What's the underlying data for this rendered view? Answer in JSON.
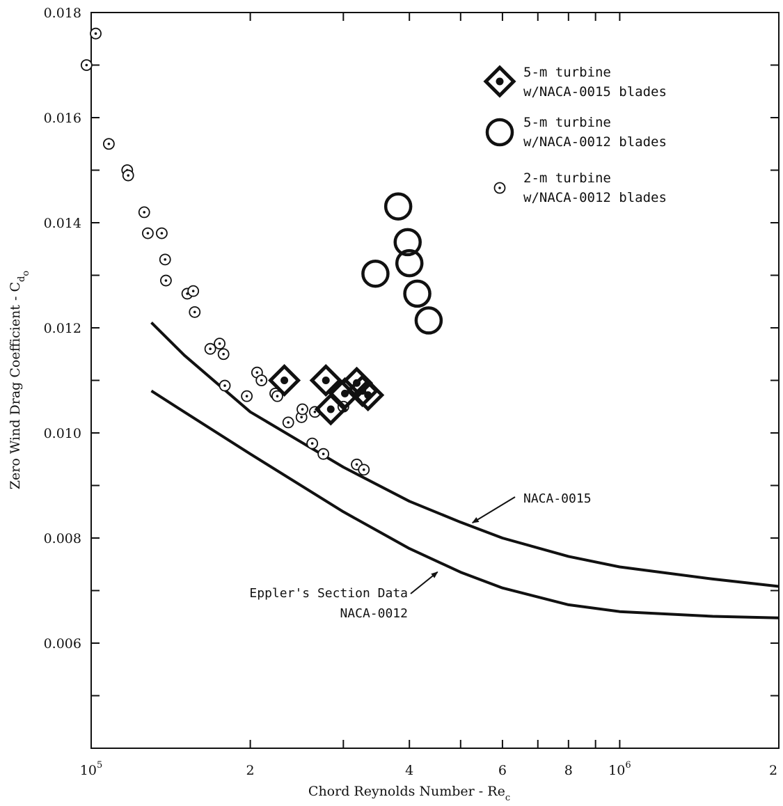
{
  "chart_data": {
    "type": "scatter",
    "x_scale": "log",
    "xlim": [
      100000,
      2000000
    ],
    "ylim": [
      0.004,
      0.018
    ],
    "y_ticks": [
      0.006,
      0.008,
      0.01,
      0.012,
      0.014,
      0.016,
      0.018
    ],
    "y_tick_labels": [
      "0.006",
      "0.008",
      "0.010",
      "0.012",
      "0.014",
      "0.016",
      "0.018"
    ],
    "x_tick_labels": [
      {
        "value": 100000,
        "base": "10",
        "exp": "5"
      },
      {
        "value": 200000,
        "base": "2",
        "exp": ""
      },
      {
        "value": 400000,
        "base": "4",
        "exp": ""
      },
      {
        "value": 600000,
        "base": "6",
        "exp": ""
      },
      {
        "value": 800000,
        "base": "8",
        "exp": ""
      },
      {
        "value": 1000000,
        "base": "10",
        "exp": "6"
      },
      {
        "value": 2000000,
        "base": "2",
        "exp": ""
      }
    ],
    "xlabel": {
      "text": "Chord Reynolds Number - Re",
      "sub": "c"
    },
    "ylabel": {
      "text": "Zero Wind Drag Coefficient - C",
      "sub": "d",
      "subsub": "o"
    },
    "grid": false,
    "legend_position": "top-right",
    "legend": [
      {
        "marker": "diamond-dot",
        "line1": "5-m turbine",
        "line2": "w/NACA-0015 blades"
      },
      {
        "marker": "big-circle",
        "line1": "5-m turbine",
        "line2": "w/NACA-0012 blades"
      },
      {
        "marker": "small-circle-dot",
        "line1": "2-m turbine",
        "line2": "w/NACA-0012 blades"
      }
    ],
    "series": [
      {
        "marker": "diamond-dot",
        "points": [
          {
            "x": 232000,
            "y": 0.011
          },
          {
            "x": 278000,
            "y": 0.011
          },
          {
            "x": 284000,
            "y": 0.01045
          },
          {
            "x": 302000,
            "y": 0.01075
          },
          {
            "x": 318000,
            "y": 0.01095
          },
          {
            "x": 326000,
            "y": 0.0108
          },
          {
            "x": 334000,
            "y": 0.01072
          }
        ]
      },
      {
        "marker": "big-circle",
        "points": [
          {
            "x": 345000,
            "y": 0.01303
          },
          {
            "x": 381000,
            "y": 0.01431
          },
          {
            "x": 397000,
            "y": 0.01363
          },
          {
            "x": 400000,
            "y": 0.01323
          },
          {
            "x": 414000,
            "y": 0.01265
          },
          {
            "x": 435000,
            "y": 0.01214
          }
        ]
      },
      {
        "marker": "small-circle-dot",
        "points": [
          {
            "x": 98000,
            "y": 0.017
          },
          {
            "x": 102000,
            "y": 0.0176
          },
          {
            "x": 108000,
            "y": 0.0155
          },
          {
            "x": 117000,
            "y": 0.015
          },
          {
            "x": 117500,
            "y": 0.0149
          },
          {
            "x": 126000,
            "y": 0.0142
          },
          {
            "x": 128000,
            "y": 0.0138
          },
          {
            "x": 136000,
            "y": 0.0138
          },
          {
            "x": 138000,
            "y": 0.0133
          },
          {
            "x": 138500,
            "y": 0.0129
          },
          {
            "x": 152000,
            "y": 0.01265
          },
          {
            "x": 156000,
            "y": 0.0127
          },
          {
            "x": 157000,
            "y": 0.0123
          },
          {
            "x": 168000,
            "y": 0.0116
          },
          {
            "x": 175000,
            "y": 0.0117
          },
          {
            "x": 178000,
            "y": 0.0115
          },
          {
            "x": 179000,
            "y": 0.0109
          },
          {
            "x": 197000,
            "y": 0.0107
          },
          {
            "x": 206000,
            "y": 0.01115
          },
          {
            "x": 210000,
            "y": 0.011
          },
          {
            "x": 223000,
            "y": 0.01075
          },
          {
            "x": 225000,
            "y": 0.0107
          },
          {
            "x": 236000,
            "y": 0.0102
          },
          {
            "x": 250000,
            "y": 0.0103
          },
          {
            "x": 251000,
            "y": 0.01045
          },
          {
            "x": 262000,
            "y": 0.0098
          },
          {
            "x": 265000,
            "y": 0.0104
          },
          {
            "x": 275000,
            "y": 0.0096
          },
          {
            "x": 300000,
            "y": 0.0105
          },
          {
            "x": 318000,
            "y": 0.0094
          },
          {
            "x": 328000,
            "y": 0.0093
          }
        ]
      }
    ],
    "curves": [
      {
        "label": "NACA-0015",
        "points": [
          {
            "x": 130000,
            "y": 0.0121
          },
          {
            "x": 150000,
            "y": 0.01148
          },
          {
            "x": 200000,
            "y": 0.0104
          },
          {
            "x": 300000,
            "y": 0.00935
          },
          {
            "x": 400000,
            "y": 0.0087
          },
          {
            "x": 500000,
            "y": 0.0083
          },
          {
            "x": 600000,
            "y": 0.008
          },
          {
            "x": 800000,
            "y": 0.00765
          },
          {
            "x": 1000000,
            "y": 0.00745
          },
          {
            "x": 1500000,
            "y": 0.00722
          },
          {
            "x": 2000000,
            "y": 0.00708
          }
        ]
      },
      {
        "label": "NACA-0012",
        "points": [
          {
            "x": 130000,
            "y": 0.0108
          },
          {
            "x": 150000,
            "y": 0.0104
          },
          {
            "x": 200000,
            "y": 0.0096
          },
          {
            "x": 300000,
            "y": 0.0085
          },
          {
            "x": 400000,
            "y": 0.0078
          },
          {
            "x": 500000,
            "y": 0.00735
          },
          {
            "x": 600000,
            "y": 0.00705
          },
          {
            "x": 800000,
            "y": 0.00673
          },
          {
            "x": 1000000,
            "y": 0.0066
          },
          {
            "x": 1500000,
            "y": 0.00651
          },
          {
            "x": 2000000,
            "y": 0.00648
          }
        ]
      }
    ],
    "annotations": [
      {
        "text": "NACA-0015",
        "points_to": {
          "x": 520000,
          "y": 0.00825
        }
      },
      {
        "line1": "Eppler's Section Data",
        "line2": "NACA-0012",
        "points_to": {
          "x": 455000,
          "y": 0.00738
        }
      }
    ]
  }
}
